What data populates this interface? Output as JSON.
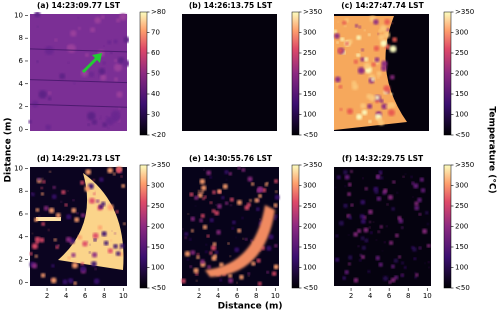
{
  "chart_data": [
    {
      "type": "image",
      "title": "(a) 14:23:09.77 LST",
      "ylim": [
        -0.5,
        10.3
      ],
      "yticks": [
        0,
        2,
        4,
        6,
        8,
        10
      ],
      "colorbar": {
        "lim": [
          20,
          80
        ],
        "ticks": [
          {
            "value": 80,
            "label": ">80"
          },
          70,
          60,
          50,
          40,
          30,
          {
            "value": 20,
            "label": "<20"
          }
        ]
      }
    },
    {
      "type": "image",
      "title": "(b) 14:26:13.75 LST",
      "ylim": [
        -0.5,
        10.3
      ],
      "colorbar": {
        "lim": [
          50,
          350
        ],
        "ticks": [
          {
            "value": 350,
            "label": ">350"
          },
          300,
          250,
          200,
          150,
          100,
          {
            "value": 50,
            "label": "<50"
          }
        ]
      }
    },
    {
      "type": "image",
      "title": "(c) 14:27:47.74 LST",
      "ylim": [
        -0.5,
        10.3
      ],
      "colorbar": {
        "lim": [
          50,
          350
        ],
        "ticks": [
          {
            "value": 350,
            "label": ">350"
          },
          300,
          250,
          200,
          150,
          100,
          {
            "value": 50,
            "label": "<50"
          }
        ]
      }
    },
    {
      "type": "image",
      "title": "(d) 14:29:21.73 LST",
      "xlim": [
        0,
        10.6
      ],
      "xticks": [
        2,
        4,
        6,
        8,
        10
      ],
      "ylim": [
        -0.5,
        10.3
      ],
      "yticks": [
        0,
        2,
        4,
        6,
        8,
        10
      ],
      "colorbar": {
        "lim": [
          50,
          350
        ],
        "ticks": [
          {
            "value": 350,
            "label": ">350"
          },
          300,
          250,
          200,
          150,
          100,
          {
            "value": 50,
            "label": "<50"
          }
        ]
      }
    },
    {
      "type": "image",
      "title": "(e) 14:30:55.76 LST",
      "xlim": [
        0,
        10.6
      ],
      "xticks": [
        2,
        4,
        6,
        8,
        10
      ],
      "ylim": [
        -0.5,
        10.3
      ],
      "colorbar": {
        "lim": [
          50,
          350
        ],
        "ticks": [
          {
            "value": 350,
            "label": ">350"
          },
          300,
          250,
          200,
          150,
          100,
          {
            "value": 50,
            "label": "<50"
          }
        ]
      }
    },
    {
      "type": "image",
      "title": "(f) 14:32:29.75 LST",
      "xlim": [
        0,
        10.6
      ],
      "xticks": [
        2,
        4,
        6,
        8,
        10
      ],
      "ylim": [
        -0.5,
        10.3
      ],
      "colorbar": {
        "lim": [
          50,
          350
        ],
        "ticks": [
          {
            "value": 350,
            "label": ">350"
          },
          300,
          250,
          200,
          150,
          100,
          {
            "value": 50,
            "label": "<50"
          }
        ]
      }
    }
  ],
  "xlabel": "Distance (m)",
  "ylabel": "Distance (m)",
  "colorbar_label": "Temperature (°C)"
}
